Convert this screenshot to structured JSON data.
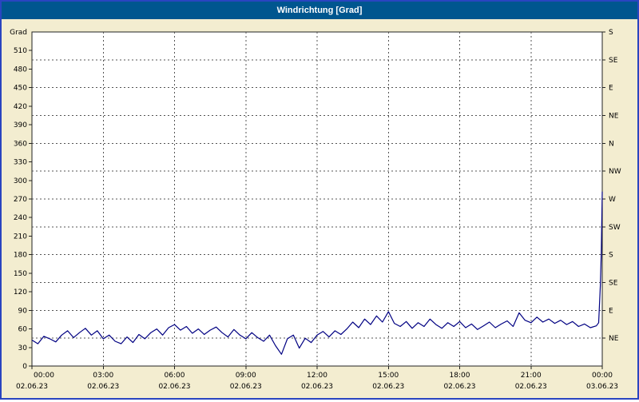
{
  "window": {
    "title": "Windrichtung [Grad]"
  },
  "colors": {
    "titlebar_bg": "#00568f",
    "title_text": "#ffffff",
    "frame_border": "#2a45c0",
    "background": "#f3edd0",
    "plot_bg": "#ffffff",
    "axis": "#222222",
    "grid": "#555555",
    "line": "#000082",
    "text": "#000000"
  },
  "chart_data": {
    "type": "line",
    "title": "Windrichtung [Grad]",
    "xlabel": "",
    "ylabel": "Grad",
    "xlim": [
      0,
      24
    ],
    "ylim": [
      0,
      540
    ],
    "grid": true,
    "y_grid_interval": 45,
    "x_grid_interval_hours": 3,
    "y_ticks_left": [
      0,
      30,
      60,
      90,
      120,
      150,
      180,
      210,
      240,
      270,
      300,
      330,
      360,
      390,
      420,
      450,
      480,
      510
    ],
    "y_ticks_right": [
      {
        "value": 45,
        "label": "NE"
      },
      {
        "value": 90,
        "label": "E"
      },
      {
        "value": 135,
        "label": "SE"
      },
      {
        "value": 180,
        "label": "S"
      },
      {
        "value": 225,
        "label": "SW"
      },
      {
        "value": 270,
        "label": "W"
      },
      {
        "value": 315,
        "label": "NW"
      },
      {
        "value": 360,
        "label": "N"
      },
      {
        "value": 405,
        "label": "NE"
      },
      {
        "value": 450,
        "label": "E"
      },
      {
        "value": 495,
        "label": "SE"
      },
      {
        "value": 540,
        "label": "S"
      }
    ],
    "x_ticks": [
      {
        "hour": 0,
        "time": "00:00",
        "date": "02.06.23"
      },
      {
        "hour": 3,
        "time": "03:00",
        "date": "02.06.23"
      },
      {
        "hour": 6,
        "time": "06:00",
        "date": "02.06.23"
      },
      {
        "hour": 9,
        "time": "09:00",
        "date": "02.06.23"
      },
      {
        "hour": 12,
        "time": "12:00",
        "date": "02.06.23"
      },
      {
        "hour": 15,
        "time": "15:00",
        "date": "02.06.23"
      },
      {
        "hour": 18,
        "time": "18:00",
        "date": "02.06.23"
      },
      {
        "hour": 21,
        "time": "21:00",
        "date": "02.06.23"
      },
      {
        "hour": 24,
        "time": "00:00",
        "date": "03.06.23"
      }
    ],
    "series": [
      {
        "name": "Windrichtung",
        "color": "#000082",
        "points": [
          [
            0,
            42
          ],
          [
            0.25,
            36
          ],
          [
            0.5,
            48
          ],
          [
            0.75,
            44
          ],
          [
            1,
            39
          ],
          [
            1.25,
            50
          ],
          [
            1.5,
            57
          ],
          [
            1.75,
            46
          ],
          [
            2,
            54
          ],
          [
            2.25,
            61
          ],
          [
            2.5,
            50
          ],
          [
            2.75,
            57
          ],
          [
            3,
            44
          ],
          [
            3.25,
            50
          ],
          [
            3.5,
            40
          ],
          [
            3.75,
            36
          ],
          [
            4,
            47
          ],
          [
            4.25,
            38
          ],
          [
            4.5,
            51
          ],
          [
            4.75,
            44
          ],
          [
            5,
            54
          ],
          [
            5.25,
            60
          ],
          [
            5.5,
            50
          ],
          [
            5.75,
            62
          ],
          [
            6,
            67
          ],
          [
            6.25,
            58
          ],
          [
            6.5,
            64
          ],
          [
            6.75,
            53
          ],
          [
            7,
            60
          ],
          [
            7.25,
            51
          ],
          [
            7.5,
            58
          ],
          [
            7.75,
            63
          ],
          [
            8,
            54
          ],
          [
            8.25,
            47
          ],
          [
            8.5,
            59
          ],
          [
            8.75,
            50
          ],
          [
            9,
            44
          ],
          [
            9.25,
            54
          ],
          [
            9.5,
            46
          ],
          [
            9.75,
            40
          ],
          [
            10,
            50
          ],
          [
            10.25,
            33
          ],
          [
            10.5,
            19
          ],
          [
            10.75,
            44
          ],
          [
            11,
            50
          ],
          [
            11.25,
            29
          ],
          [
            11.5,
            45
          ],
          [
            11.75,
            38
          ],
          [
            12,
            50
          ],
          [
            12.25,
            56
          ],
          [
            12.5,
            47
          ],
          [
            12.75,
            57
          ],
          [
            13,
            51
          ],
          [
            13.25,
            60
          ],
          [
            13.5,
            71
          ],
          [
            13.75,
            62
          ],
          [
            14,
            76
          ],
          [
            14.25,
            67
          ],
          [
            14.5,
            81
          ],
          [
            14.75,
            71
          ],
          [
            15,
            88
          ],
          [
            15.25,
            69
          ],
          [
            15.5,
            64
          ],
          [
            15.75,
            72
          ],
          [
            16,
            61
          ],
          [
            16.25,
            70
          ],
          [
            16.5,
            64
          ],
          [
            16.75,
            76
          ],
          [
            17,
            67
          ],
          [
            17.25,
            61
          ],
          [
            17.5,
            70
          ],
          [
            17.75,
            64
          ],
          [
            18,
            72
          ],
          [
            18.25,
            62
          ],
          [
            18.5,
            68
          ],
          [
            18.75,
            59
          ],
          [
            19,
            65
          ],
          [
            19.25,
            71
          ],
          [
            19.5,
            62
          ],
          [
            19.75,
            68
          ],
          [
            20,
            73
          ],
          [
            20.25,
            64
          ],
          [
            20.5,
            86
          ],
          [
            20.75,
            74
          ],
          [
            21,
            70
          ],
          [
            21.25,
            79
          ],
          [
            21.5,
            71
          ],
          [
            21.75,
            76
          ],
          [
            22,
            69
          ],
          [
            22.25,
            74
          ],
          [
            22.5,
            67
          ],
          [
            22.75,
            72
          ],
          [
            23,
            64
          ],
          [
            23.25,
            68
          ],
          [
            23.5,
            62
          ],
          [
            23.75,
            65
          ],
          [
            23.85,
            70
          ],
          [
            23.92,
            130
          ],
          [
            23.96,
            185
          ],
          [
            24,
            282
          ]
        ]
      }
    ]
  }
}
